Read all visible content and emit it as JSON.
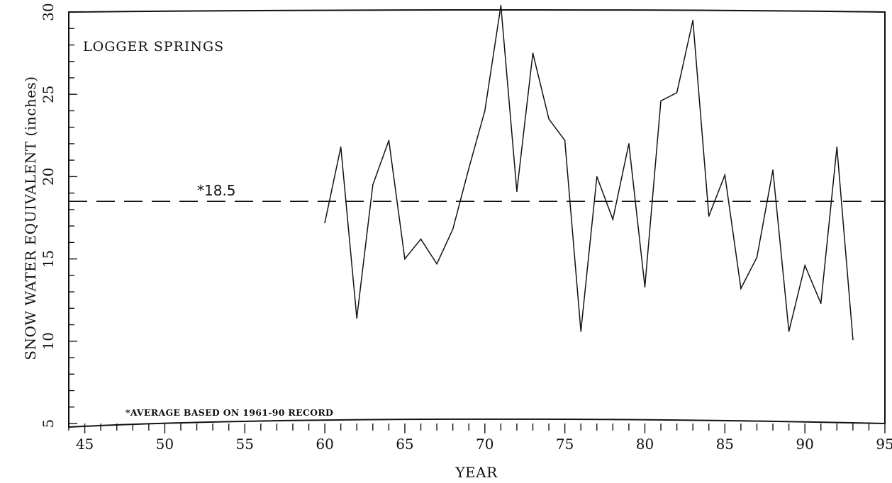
{
  "chart_data": {
    "type": "line",
    "location_label": "LOGGER SPRINGS",
    "xlabel": "YEAR",
    "ylabel": "SNOW WATER EQUIVALENT (inches)",
    "xlim": [
      44,
      95
    ],
    "ylim": [
      5,
      30
    ],
    "x_ticks": [
      45,
      50,
      55,
      60,
      65,
      70,
      75,
      80,
      85,
      90,
      95
    ],
    "y_ticks": [
      5,
      10,
      15,
      20,
      25,
      30
    ],
    "average_value": 18.5,
    "average_label": "*18.5",
    "footnote": "*AVERAGE BASED ON 1961-90 RECORD",
    "grid": false,
    "series": [
      {
        "x": [
          60,
          61,
          62,
          63,
          64,
          65,
          66,
          67,
          68,
          69,
          70,
          71,
          72,
          73,
          74,
          75,
          76,
          77,
          78,
          79,
          80,
          81,
          82,
          83,
          84,
          85,
          86,
          87,
          88,
          89,
          90,
          91,
          92,
          93
        ],
        "values": [
          17.2,
          21.8,
          11.4,
          19.5,
          22.2,
          15.0,
          16.2,
          14.7,
          16.8,
          20.5,
          24.0,
          30.4,
          19.1,
          27.5,
          23.5,
          22.2,
          10.6,
          20.0,
          17.4,
          22.0,
          13.3,
          24.6,
          25.1,
          29.5,
          17.6,
          20.1,
          13.2,
          15.1,
          20.4,
          10.6,
          14.6,
          12.3,
          21.8,
          10.1
        ]
      }
    ]
  }
}
